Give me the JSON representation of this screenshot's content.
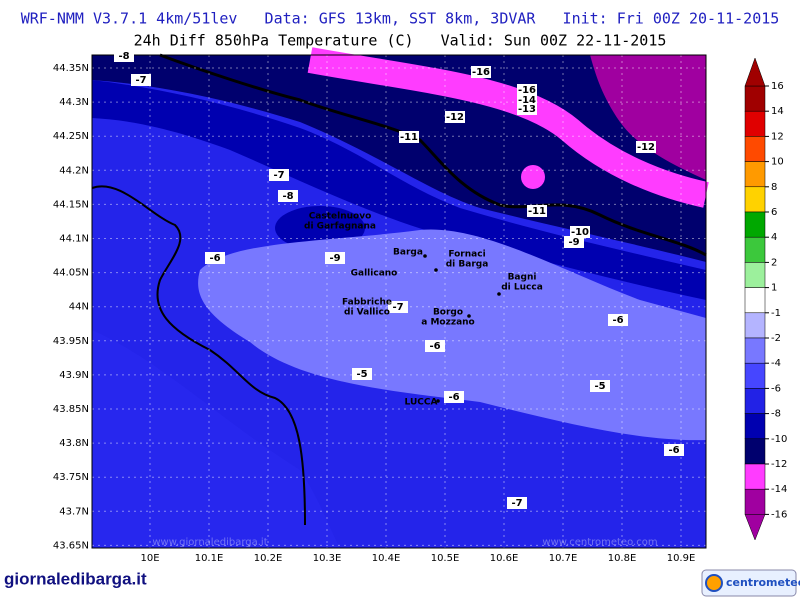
{
  "header": {
    "line1": "WRF-NMM V3.7.1 4km/51lev   Data: GFS 13km, SST 8km, 3DVAR   Init: Fri 00Z 20-11-2015",
    "line2": "24h Diff 850hPa Temperature (C)   Valid: Sun 00Z 22-11-2015"
  },
  "map": {
    "lat_labels": [
      "44.35N",
      "44.3N",
      "44.25N",
      "44.2N",
      "44.15N",
      "44.1N",
      "44.05N",
      "44N",
      "43.95N",
      "43.9N",
      "43.85N",
      "43.8N",
      "43.75N",
      "43.7N",
      "43.65N"
    ],
    "lon_labels": [
      "10E",
      "10.1E",
      "10.2E",
      "10.3E",
      "10.4E",
      "10.5E",
      "10.6E",
      "10.7E",
      "10.8E",
      "10.9E"
    ],
    "contour_labels": [
      "-8",
      "-7",
      "-16",
      "-16",
      "-14",
      "-13",
      "-12",
      "-11",
      "-12",
      "-7",
      "-8",
      "-11",
      "-10",
      "-9",
      "-6",
      "-9",
      "-7",
      "-6",
      "-6",
      "-5",
      "-5",
      "-6",
      "-6",
      "-7"
    ],
    "places": [
      [
        "Castelnuovo",
        "di Garfagnana"
      ],
      [
        "Barga"
      ],
      [
        "Fornaci",
        "di Barga"
      ],
      [
        "Gallicano"
      ],
      [
        "Bagni",
        "di Lucca"
      ],
      [
        "Fabbriche",
        "di Vallico"
      ],
      [
        "Borgo",
        "a Mozzano"
      ],
      [
        "LUCCA"
      ]
    ],
    "watermarks": [
      "www.giornaledibarga.it",
      "www.centrometeo.com"
    ]
  },
  "colorbar": {
    "levels": [
      16,
      14,
      12,
      10,
      8,
      6,
      4,
      2,
      1,
      -1,
      -2,
      -4,
      -6,
      -8,
      -10,
      -12,
      -14,
      -16
    ],
    "colors": [
      "#a00000",
      "#e00000",
      "#ff4a00",
      "#ff9a00",
      "#ffd200",
      "#00a800",
      "#3cc83c",
      "#9cf09c",
      "#ffffff",
      "#b4b4ff",
      "#7878ff",
      "#4646ff",
      "#2222e6",
      "#0000b0",
      "#00006e",
      "#ff3cff",
      "#a000a0"
    ]
  },
  "footer": {
    "left_logo": "giornaledibarga.it",
    "right_logo": "centrometeo"
  }
}
